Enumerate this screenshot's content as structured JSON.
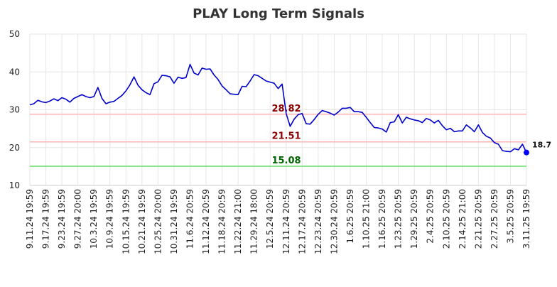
{
  "chart_data": {
    "type": "line",
    "title": "PLAY Long Term Signals",
    "xlabel": "",
    "ylabel": "",
    "ylim": [
      10,
      50
    ],
    "yticks": [
      10,
      20,
      30,
      40,
      50
    ],
    "grid": true,
    "x_tick_labels": [
      "9.11.24 19:59",
      "9.17.24 19:59",
      "9.23.24 19:59",
      "9.27.24 20:00",
      "10.3.24 19:59",
      "10.9.24 19:59",
      "10.15.24 19:59",
      "10.21.24 19:59",
      "10.25.24 20:00",
      "10.31.24 19:59",
      "11.6.24 20:59",
      "11.12.24 20:59",
      "11.18.24 20:59",
      "11.22.24 21:00",
      "11.29.24 18:00",
      "12.5.24 20:59",
      "12.11.24 20:59",
      "12.17.24 20:59",
      "12.23.24 20:59",
      "12.30.24 20:59",
      "1.6.25 20:59",
      "1.10.25 21:00",
      "1.16.25 20:59",
      "1.23.25 20:59",
      "1.29.25 20:59",
      "2.4.25 20:59",
      "2.10.25 20:59",
      "2.14.25 21:00",
      "2.21.25 20:59",
      "2.27.25 20:59",
      "3.5.25 20:59",
      "3.11.25 19:59"
    ],
    "series": [
      {
        "color": "#0000cc",
        "values": [
          31.3,
          31.6,
          32.5,
          32.1,
          31.9,
          32.3,
          32.9,
          32.4,
          33.2,
          32.8,
          32.0,
          33.0,
          33.5,
          34.0,
          33.5,
          33.2,
          33.5,
          35.9,
          33.0,
          31.6,
          32.0,
          32.2,
          33.0,
          33.8,
          35.0,
          36.6,
          38.7,
          36.5,
          35.3,
          34.5,
          34.0,
          36.9,
          37.4,
          39.1,
          39.0,
          38.7,
          37.0,
          38.6,
          38.3,
          38.5,
          42.0,
          39.7,
          39.2,
          41.0,
          40.7,
          40.8,
          39.2,
          38.0,
          36.3,
          35.3,
          34.2,
          34.1,
          34.0,
          36.2,
          36.1,
          37.6,
          39.3,
          39.0,
          38.3,
          37.6,
          37.3,
          37.0,
          35.6,
          36.8,
          29.0,
          25.6,
          27.5,
          28.7,
          29.0,
          26.3,
          26.2,
          27.4,
          28.8,
          29.8,
          29.5,
          29.1,
          28.6,
          29.4,
          30.4,
          30.4,
          30.6,
          29.5,
          29.5,
          29.3,
          28.0,
          26.6,
          25.3,
          25.2,
          24.9,
          24.1,
          26.6,
          26.8,
          28.7,
          26.5,
          28.0,
          27.6,
          27.3,
          27.1,
          26.6,
          27.7,
          27.3,
          26.5,
          27.2,
          25.8,
          24.7,
          25.1,
          24.2,
          24.4,
          24.4,
          26.0,
          25.2,
          24.2,
          26.0,
          24.0,
          23.0,
          22.5,
          21.3,
          20.9,
          19.2,
          19.0,
          18.9,
          19.7,
          19.4,
          20.9,
          18.7
        ]
      }
    ],
    "hlines": [
      {
        "label": "28.82",
        "value": 28.82,
        "line_color": "#ffb3b3",
        "text_color": "#8b0000"
      },
      {
        "label": "21.51",
        "value": 21.51,
        "line_color": "#ffb3b3",
        "text_color": "#8b0000"
      },
      {
        "label": "15.08",
        "value": 15.08,
        "line_color": "#66dd66",
        "text_color": "#006400"
      }
    ],
    "last_point": {
      "label": "18.7",
      "value": 18.7,
      "color": "#0000ff"
    }
  }
}
